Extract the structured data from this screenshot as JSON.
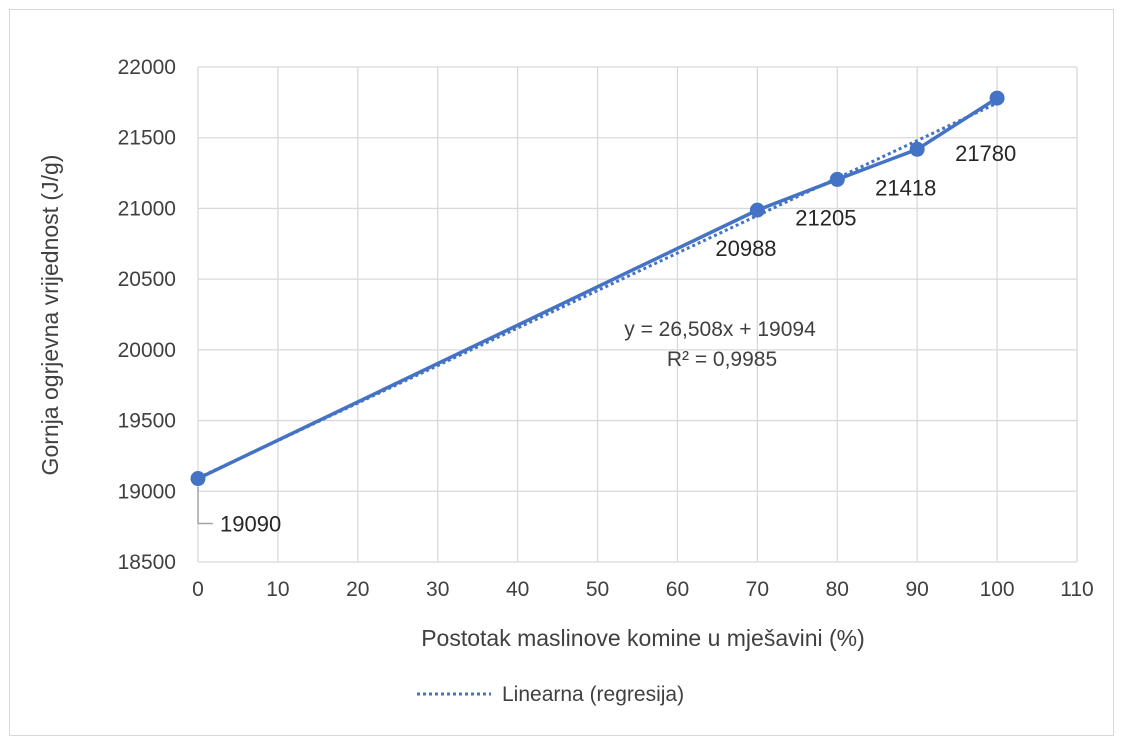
{
  "chart_data": {
    "type": "line",
    "title": "",
    "xlabel": "Postotak maslinove komine u mješavini (%)",
    "ylabel": "Gornja ogrjevna vrijednost (J/g)",
    "xlim": [
      0,
      110
    ],
    "ylim": [
      18500,
      22000
    ],
    "x_ticks": [
      "0",
      "10",
      "20",
      "30",
      "40",
      "50",
      "60",
      "70",
      "80",
      "90",
      "100",
      "110"
    ],
    "y_ticks": [
      "18500",
      "19000",
      "19500",
      "20000",
      "20500",
      "21000",
      "21500",
      "22000"
    ],
    "grid": true,
    "series": [
      {
        "x": [
          0,
          70,
          80,
          90,
          100
        ],
        "y": [
          19090,
          20988,
          21205,
          21418,
          21780
        ],
        "labels": [
          "19090",
          "20988",
          "21205",
          "21418",
          "21780"
        ],
        "color": "#4472c4"
      }
    ],
    "trendline": {
      "name": "Linearna (regresija)",
      "slope": 26.508,
      "intercept": 19094,
      "x_range": [
        0,
        100
      ],
      "equation": "y = 26,508x + 19094",
      "r_squared": "R² = 0,9985",
      "color": "#4472c4",
      "style": "dotted"
    },
    "legend": {
      "position": "bottom",
      "entries": [
        "Linearna (regresija)"
      ]
    },
    "colors": {
      "series": "#4472c4",
      "grid": "#d9d9d9",
      "text": "#404040"
    }
  }
}
